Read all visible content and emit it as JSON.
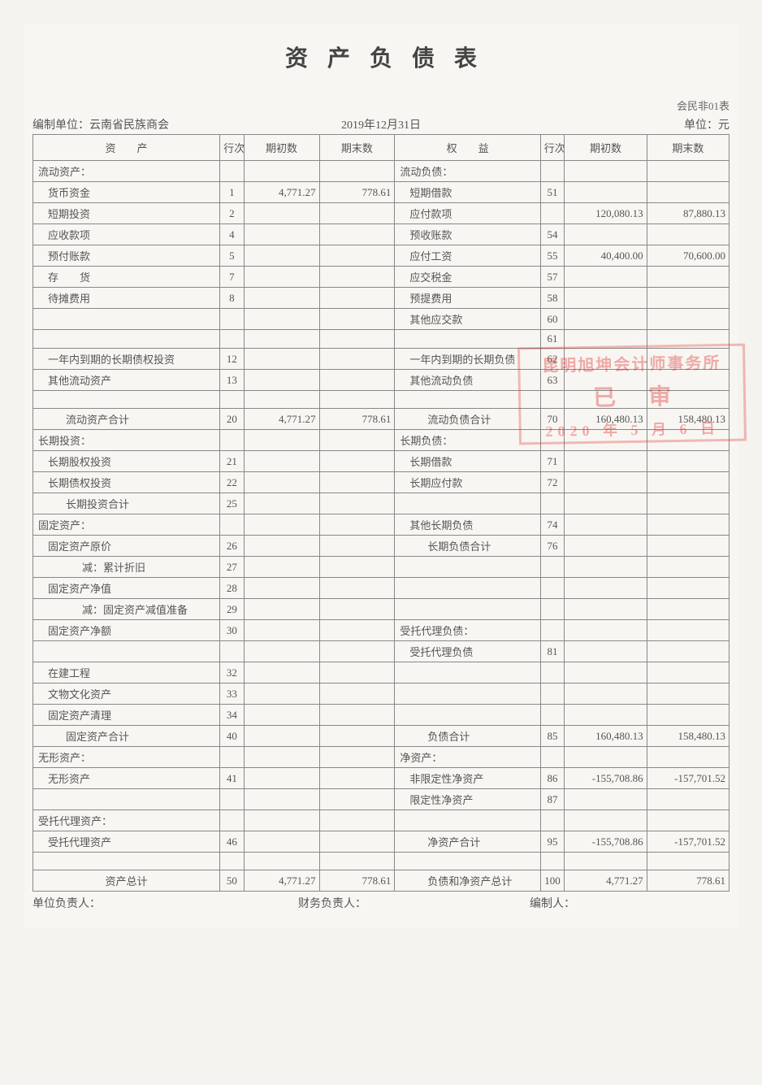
{
  "title": "资产负债表",
  "form_code": "会民非01表",
  "meta": {
    "org_label": "编制单位：",
    "org": "云南省民族商会",
    "date": "2019年12月31日",
    "unit": "单位：元"
  },
  "headers": {
    "asset": "资　　产",
    "row": "行次",
    "begin": "期初数",
    "end": "期末数",
    "equity": "权　　益"
  },
  "footer": {
    "l": "单位负责人：",
    "c": "财务负责人：",
    "r": "编制人："
  },
  "stamp": {
    "line1": "昆明旭坤会计师事务所",
    "line2": "已审",
    "line3": "2020 年 5 月 6 日"
  },
  "rows": [
    {
      "a": "流动资产：",
      "ai": 0,
      "ar": "",
      "ab": "",
      "ae": "",
      "e": "流动负债：",
      "ei": 0,
      "er": "",
      "eb": "",
      "ee": ""
    },
    {
      "a": "货币资金",
      "ai": 1,
      "ar": "1",
      "ab": "4,771.27",
      "ae": "778.61",
      "e": "短期借款",
      "ei": 1,
      "er": "51",
      "eb": "",
      "ee": ""
    },
    {
      "a": "短期投资",
      "ai": 1,
      "ar": "2",
      "ab": "",
      "ae": "",
      "e": "应付款项",
      "ei": 1,
      "er": "",
      "eb": "120,080.13",
      "ee": "87,880.13"
    },
    {
      "a": "应收款项",
      "ai": 1,
      "ar": "4",
      "ab": "",
      "ae": "",
      "e": "预收账款",
      "ei": 1,
      "er": "54",
      "eb": "",
      "ee": ""
    },
    {
      "a": "预付账款",
      "ai": 1,
      "ar": "5",
      "ab": "",
      "ae": "",
      "e": "应付工资",
      "ei": 1,
      "er": "55",
      "eb": "40,400.00",
      "ee": "70,600.00"
    },
    {
      "a": "存　　货",
      "ai": 1,
      "ar": "7",
      "ab": "",
      "ae": "",
      "e": "应交税金",
      "ei": 1,
      "er": "57",
      "eb": "",
      "ee": ""
    },
    {
      "a": "待摊费用",
      "ai": 1,
      "ar": "8",
      "ab": "",
      "ae": "",
      "e": "预提费用",
      "ei": 1,
      "er": "58",
      "eb": "",
      "ee": ""
    },
    {
      "a": "",
      "ai": 1,
      "ar": "",
      "ab": "",
      "ae": "",
      "e": "其他应交款",
      "ei": 1,
      "er": "60",
      "eb": "",
      "ee": ""
    },
    {
      "a": "",
      "ai": 1,
      "ar": "",
      "ab": "",
      "ae": "",
      "e": "",
      "ei": 1,
      "er": "61",
      "eb": "",
      "ee": ""
    },
    {
      "a": "一年内到期的长期债权投资",
      "ai": 1,
      "ar": "12",
      "ab": "",
      "ae": "",
      "e": "一年内到期的长期负债",
      "ei": 1,
      "er": "62",
      "eb": "",
      "ee": ""
    },
    {
      "a": "其他流动资产",
      "ai": 1,
      "ar": "13",
      "ab": "",
      "ae": "",
      "e": "其他流动负债",
      "ei": 1,
      "er": "63",
      "eb": "",
      "ee": ""
    },
    {
      "a": "",
      "ai": 1,
      "ar": "",
      "ab": "",
      "ae": "",
      "e": "",
      "ei": 1,
      "er": "",
      "eb": "",
      "ee": ""
    },
    {
      "a": "流动资产合计",
      "ai": 2,
      "ar": "20",
      "ab": "4,771.27",
      "ae": "778.61",
      "e": "流动负债合计",
      "ei": 2,
      "er": "70",
      "eb": "160,480.13",
      "ee": "158,480.13"
    },
    {
      "a": "长期投资：",
      "ai": 0,
      "ar": "",
      "ab": "",
      "ae": "",
      "e": "长期负债：",
      "ei": 0,
      "er": "",
      "eb": "",
      "ee": ""
    },
    {
      "a": "长期股权投资",
      "ai": 1,
      "ar": "21",
      "ab": "",
      "ae": "",
      "e": "长期借款",
      "ei": 1,
      "er": "71",
      "eb": "",
      "ee": ""
    },
    {
      "a": "长期债权投资",
      "ai": 1,
      "ar": "22",
      "ab": "",
      "ae": "",
      "e": "长期应付款",
      "ei": 1,
      "er": "72",
      "eb": "",
      "ee": ""
    },
    {
      "a": "长期投资合计",
      "ai": 2,
      "ar": "25",
      "ab": "",
      "ae": "",
      "e": "",
      "ei": 1,
      "er": "",
      "eb": "",
      "ee": ""
    },
    {
      "a": "固定资产：",
      "ai": 0,
      "ar": "",
      "ab": "",
      "ae": "",
      "e": "其他长期负债",
      "ei": 1,
      "er": "74",
      "eb": "",
      "ee": ""
    },
    {
      "a": "固定资产原价",
      "ai": 1,
      "ar": "26",
      "ab": "",
      "ae": "",
      "e": "长期负债合计",
      "ei": 2,
      "er": "76",
      "eb": "",
      "ee": ""
    },
    {
      "a": "减：累计折旧",
      "ai": 3,
      "ar": "27",
      "ab": "",
      "ae": "",
      "e": "",
      "ei": 1,
      "er": "",
      "eb": "",
      "ee": ""
    },
    {
      "a": "固定资产净值",
      "ai": 1,
      "ar": "28",
      "ab": "",
      "ae": "",
      "e": "",
      "ei": 1,
      "er": "",
      "eb": "",
      "ee": ""
    },
    {
      "a": "减：固定资产减值准备",
      "ai": 3,
      "ar": "29",
      "ab": "",
      "ae": "",
      "e": "",
      "ei": 1,
      "er": "",
      "eb": "",
      "ee": ""
    },
    {
      "a": "固定资产净额",
      "ai": 1,
      "ar": "30",
      "ab": "",
      "ae": "",
      "e": "受托代理负债：",
      "ei": 0,
      "er": "",
      "eb": "",
      "ee": ""
    },
    {
      "a": "",
      "ai": 1,
      "ar": "",
      "ab": "",
      "ae": "",
      "e": "受托代理负债",
      "ei": 1,
      "er": "81",
      "eb": "",
      "ee": ""
    },
    {
      "a": "在建工程",
      "ai": 1,
      "ar": "32",
      "ab": "",
      "ae": "",
      "e": "",
      "ei": 1,
      "er": "",
      "eb": "",
      "ee": ""
    },
    {
      "a": "文物文化资产",
      "ai": 1,
      "ar": "33",
      "ab": "",
      "ae": "",
      "e": "",
      "ei": 1,
      "er": "",
      "eb": "",
      "ee": ""
    },
    {
      "a": "固定资产清理",
      "ai": 1,
      "ar": "34",
      "ab": "",
      "ae": "",
      "e": "",
      "ei": 1,
      "er": "",
      "eb": "",
      "ee": ""
    },
    {
      "a": "固定资产合计",
      "ai": 2,
      "ar": "40",
      "ab": "",
      "ae": "",
      "e": "负债合计",
      "ei": 2,
      "er": "85",
      "eb": "160,480.13",
      "ee": "158,480.13"
    },
    {
      "a": "无形资产：",
      "ai": 0,
      "ar": "",
      "ab": "",
      "ae": "",
      "e": "净资产：",
      "ei": 0,
      "er": "",
      "eb": "",
      "ee": ""
    },
    {
      "a": "无形资产",
      "ai": 1,
      "ar": "41",
      "ab": "",
      "ae": "",
      "e": "非限定性净资产",
      "ei": 1,
      "er": "86",
      "eb": "-155,708.86",
      "ee": "-157,701.52"
    },
    {
      "a": "",
      "ai": 1,
      "ar": "",
      "ab": "",
      "ae": "",
      "e": "限定性净资产",
      "ei": 1,
      "er": "87",
      "eb": "",
      "ee": ""
    },
    {
      "a": "受托代理资产：",
      "ai": 0,
      "ar": "",
      "ab": "",
      "ae": "",
      "e": "",
      "ei": 1,
      "er": "",
      "eb": "",
      "ee": ""
    },
    {
      "a": "受托代理资产",
      "ai": 1,
      "ar": "46",
      "ab": "",
      "ae": "",
      "e": "净资产合计",
      "ei": 2,
      "er": "95",
      "eb": "-155,708.86",
      "ee": "-157,701.52"
    },
    {
      "a": "",
      "ai": 1,
      "ar": "",
      "ab": "",
      "ae": "",
      "e": "",
      "ei": 1,
      "er": "",
      "eb": "",
      "ee": ""
    },
    {
      "a": "资产总计",
      "ai": "c",
      "ar": "50",
      "ab": "4,771.27",
      "ae": "778.61",
      "e": "负债和净资产总计",
      "ei": 2,
      "er": "100",
      "eb": "4,771.27",
      "ee": "778.61"
    }
  ]
}
